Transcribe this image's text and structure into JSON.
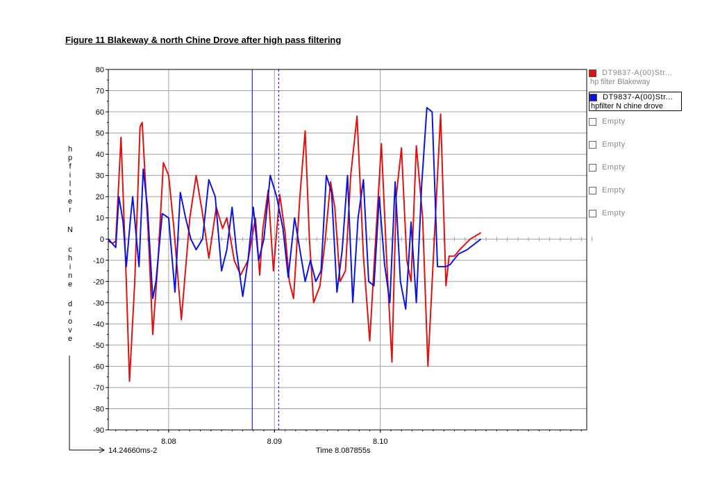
{
  "figure_title": "Figure 11 Blakeway & north Chine Drove after high pass filtering",
  "legend": {
    "items": [
      {
        "name": "DT9837-A(00)Str...",
        "sub": "hp filter Blakeway",
        "color": "#e01010",
        "checked": true,
        "selected": false
      },
      {
        "name": "DT9837-A(00)Str...",
        "sub": "hpfilter N chine drove",
        "color": "#0a14e0",
        "checked": true,
        "selected": true
      },
      {
        "name": "Empty",
        "sub": "",
        "color": "#ffffff",
        "checked": false,
        "selected": false
      },
      {
        "name": "Empty",
        "sub": "",
        "color": "#ffffff",
        "checked": false,
        "selected": false
      },
      {
        "name": "Empty",
        "sub": "",
        "color": "#ffffff",
        "checked": false,
        "selected": false
      },
      {
        "name": "Empty",
        "sub": "",
        "color": "#ffffff",
        "checked": false,
        "selected": false
      },
      {
        "name": "Empty",
        "sub": "",
        "color": "#ffffff",
        "checked": false,
        "selected": false
      }
    ]
  },
  "footer": {
    "left_readout": "14.24660ms-2",
    "center_readout": "Time 8.087855s"
  },
  "chart_data": {
    "type": "line",
    "title": "",
    "xlabel": "",
    "ylabel": "hpfilter N chine drove",
    "xlim": [
      8.0743,
      8.1195
    ],
    "ylim": [
      -90,
      80
    ],
    "yticks": [
      80,
      70,
      60,
      50,
      40,
      30,
      20,
      10,
      0,
      -10,
      -20,
      -30,
      -40,
      -50,
      -60,
      -70,
      -80,
      -90
    ],
    "xticks": [
      8.08,
      8.09,
      8.1
    ],
    "xtick_labels": [
      "8.08",
      "8.09",
      "8.10"
    ],
    "grid": true,
    "legend_position": "right",
    "cursors": [
      {
        "x": 8.0879,
        "style": "solid",
        "color": "#2020ff"
      },
      {
        "x": 8.0904,
        "style": "dashed",
        "color": "#2020ff"
      }
    ],
    "series": [
      {
        "name": "hp filter Blakeway",
        "color": "#e01010",
        "x": [
          8.0743,
          8.0747,
          8.075,
          8.0755,
          8.076,
          8.0763,
          8.0768,
          8.0773,
          8.0775,
          8.0781,
          8.0785,
          8.079,
          8.0795,
          8.08,
          8.0805,
          8.0812,
          8.082,
          8.0826,
          8.0832,
          8.0838,
          8.0845,
          8.0851,
          8.0855,
          8.0862,
          8.0868,
          8.0875,
          8.0882,
          8.0886,
          8.0889,
          8.0894,
          8.0899,
          8.0905,
          8.091,
          8.0914,
          8.0918,
          8.0924,
          8.0929,
          8.0933,
          8.0937,
          8.0943,
          8.0948,
          8.0953,
          8.0957,
          8.0962,
          8.0967,
          8.0972,
          8.0978,
          8.0984,
          8.099,
          8.0995,
          8.1001,
          8.1006,
          8.1011,
          8.1015,
          8.102,
          8.1025,
          8.1029,
          8.1034,
          8.104,
          8.1045,
          8.1051,
          8.1057,
          8.1062,
          8.1065,
          8.107,
          8.1075,
          8.1085,
          8.1095
        ],
        "y": [
          -1,
          -2,
          -1,
          48,
          -20,
          -67,
          -20,
          53,
          55,
          0,
          -45,
          -10,
          36,
          30,
          5,
          -38,
          10,
          30,
          12,
          -9,
          15,
          5,
          10,
          -10,
          -17,
          -10,
          10,
          -17,
          5,
          23,
          -15,
          21,
          3,
          -20,
          -28,
          20,
          51,
          0,
          -30,
          -22,
          0,
          27,
          15,
          -20,
          -15,
          30,
          58,
          -8,
          -48,
          -5,
          45,
          -10,
          -58,
          20,
          43,
          -10,
          -20,
          44,
          10,
          -60,
          0,
          59,
          -22,
          -8,
          -8,
          -5,
          0,
          3
        ]
      },
      {
        "name": "hpfilter N chine drove",
        "color": "#0a14e0",
        "x": [
          8.0743,
          8.075,
          8.0753,
          8.0757,
          8.076,
          8.0764,
          8.0766,
          8.0772,
          8.0776,
          8.078,
          8.0785,
          8.0788,
          8.0794,
          8.08,
          8.0806,
          8.0811,
          8.0816,
          8.0821,
          8.0826,
          8.0832,
          8.0838,
          8.0844,
          8.085,
          8.0855,
          8.086,
          8.0864,
          8.087,
          8.0875,
          8.088,
          8.0885,
          8.089,
          8.0896,
          8.0902,
          8.0908,
          8.0913,
          8.0919,
          8.0924,
          8.0929,
          8.0934,
          8.0939,
          8.0944,
          8.0949,
          8.0954,
          8.0959,
          8.0964,
          8.0969,
          8.0974,
          8.0979,
          8.0984,
          8.0989,
          8.0994,
          8.0999,
          8.1004,
          8.1009,
          8.1014,
          8.1019,
          8.1024,
          8.1029,
          8.1034,
          8.1039,
          8.1044,
          8.1049,
          8.1054,
          8.1058,
          8.1062,
          8.1066,
          8.1069,
          8.1074,
          8.1082,
          8.1095
        ],
        "y": [
          0,
          -4,
          20,
          8,
          -13,
          10,
          20,
          -13,
          33,
          15,
          -28,
          -20,
          12,
          10,
          -25,
          22,
          10,
          0,
          -5,
          0,
          28,
          20,
          -15,
          -5,
          15,
          -5,
          -27,
          -10,
          15,
          -10,
          0,
          30,
          20,
          5,
          -18,
          10,
          -5,
          -20,
          -10,
          -20,
          -15,
          30,
          22,
          -25,
          -5,
          30,
          -30,
          10,
          28,
          -20,
          -22,
          20,
          -12,
          -30,
          27,
          -20,
          -33,
          8,
          -30,
          25,
          62,
          60,
          -13,
          -13,
          -13,
          -12,
          -10,
          -7,
          -5,
          0
        ]
      }
    ]
  }
}
